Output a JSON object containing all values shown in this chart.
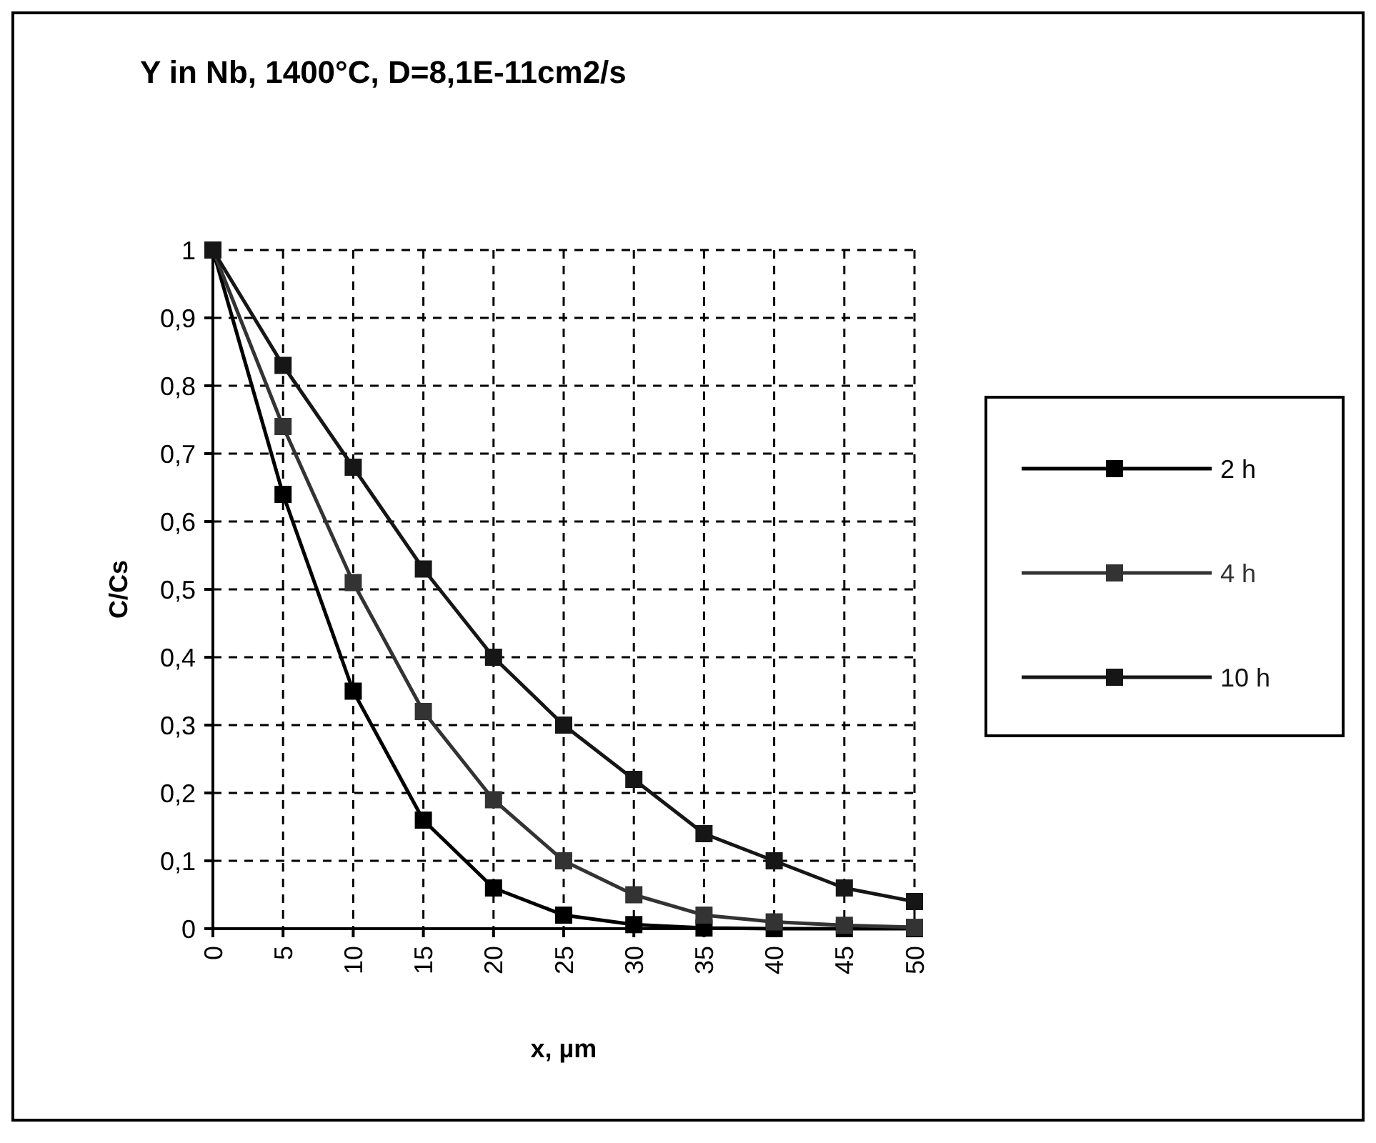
{
  "chart_data": {
    "type": "line",
    "title": "Y  in  Nb,  1400°C,  D=8,1E-11cm2/s",
    "xlabel": "x,  µm",
    "ylabel": "C/Cs",
    "x": [
      0,
      5,
      10,
      15,
      20,
      25,
      30,
      35,
      40,
      45,
      50
    ],
    "series": [
      {
        "name": "2 h",
        "color": "#000000",
        "values": [
          1,
          0.64,
          0.35,
          0.16,
          0.06,
          0.02,
          0.006,
          0.001,
          0,
          0,
          0
        ]
      },
      {
        "name": "4 h",
        "color": "#333333",
        "values": [
          1,
          0.74,
          0.51,
          0.32,
          0.19,
          0.1,
          0.05,
          0.02,
          0.01,
          0.005,
          0.002
        ]
      },
      {
        "name": "10 h",
        "color": "#161616",
        "values": [
          1,
          0.83,
          0.68,
          0.53,
          0.4,
          0.3,
          0.22,
          0.14,
          0.1,
          0.06,
          0.04
        ]
      }
    ],
    "xlim": [
      0,
      50
    ],
    "xticks": [
      0,
      5,
      10,
      15,
      20,
      25,
      30,
      35,
      40,
      45,
      50
    ],
    "ylim": [
      0,
      1
    ],
    "yticks": [
      0,
      {
        "value": 0.1,
        "label": "0,1"
      },
      {
        "value": 0.2,
        "label": "0,2"
      },
      {
        "value": 0.3,
        "label": "0,3"
      },
      {
        "value": 0.4,
        "label": "0,4"
      },
      {
        "value": 0.5,
        "label": "0,5"
      },
      {
        "value": 0.6,
        "label": "0,6"
      },
      {
        "value": 0.7,
        "label": "0,7"
      },
      {
        "value": 0.8,
        "label": "0,8"
      },
      {
        "value": 0.9,
        "label": "0,9"
      },
      1
    ],
    "grid": true,
    "legend": "right",
    "marker": "square",
    "line_style": "solid"
  }
}
